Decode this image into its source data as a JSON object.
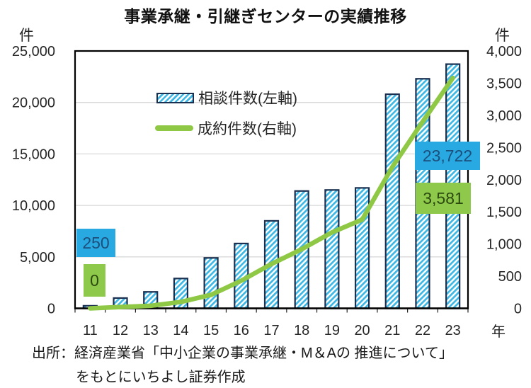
{
  "header": {
    "title": "事業承継・引継ぎセンターの実績推移"
  },
  "axes": {
    "left_unit": "件",
    "right_unit": "件",
    "x_unit": "年"
  },
  "legend": {
    "consultations": "相談件数(左軸)",
    "contracts": "成約件数(右軸)"
  },
  "callouts": {
    "consultations_first": "250",
    "contracts_first": "0",
    "consultations_last": "23,722",
    "contracts_last": "3,581"
  },
  "source": {
    "line1": "出所：経済産業省「中小企業の事業承継・M＆Aの 推進について」",
    "line2": "をもとにいちよし証券作成"
  },
  "colors": {
    "bar_hatch": "#3EB7E5",
    "bar_border": "#1B3050",
    "line": "#8FC845",
    "grid": "#D9D9D9",
    "axis": "#000000",
    "text": "#262626",
    "callout_blue_bg": "#29A9E1",
    "callout_blue_text": "#1C4F7C",
    "callout_green_bg": "#8FC94C",
    "callout_green_text": "#2B4A10"
  },
  "chart_data": {
    "type": "bar+line combo, dual axis",
    "title": "事業承継・引継ぎセンターの実績推移",
    "categories": [
      "11",
      "12",
      "13",
      "14",
      "15",
      "16",
      "17",
      "18",
      "19",
      "20",
      "21",
      "22",
      "23"
    ],
    "x_axis_unit": "年",
    "series": [
      {
        "name": "相談件数(左軸)",
        "type": "bar",
        "axis": "left",
        "values": [
          250,
          1000,
          1600,
          2900,
          4900,
          6300,
          8500,
          11400,
          11500,
          11700,
          20800,
          22300,
          23722
        ]
      },
      {
        "name": "成約件数(右軸)",
        "type": "line",
        "axis": "right",
        "values": [
          0,
          20,
          40,
          100,
          210,
          430,
          690,
          920,
          1180,
          1380,
          2200,
          2900,
          3581
        ]
      }
    ],
    "left_axis": {
      "unit": "件",
      "min": 0,
      "max": 25000,
      "step": 5000,
      "tick_labels": [
        "25,000",
        "20,000",
        "15,000",
        "10,000",
        "5,000",
        "0"
      ]
    },
    "right_axis": {
      "unit": "件",
      "min": 0,
      "max": 4000,
      "step": 500,
      "tick_labels": [
        "4,000",
        "3,500",
        "3,000",
        "2,500",
        "2,000",
        "1,500",
        "1,000",
        "500",
        "0"
      ]
    },
    "gridlines": "horizontal light gray at left-axis steps",
    "legend_position": "top-left inside plot",
    "annotations": [
      {
        "year": "11",
        "series": "相談件数",
        "text": "250",
        "style": "blue box"
      },
      {
        "year": "11",
        "series": "成約件数",
        "text": "0",
        "style": "green box"
      },
      {
        "year": "23",
        "series": "相談件数",
        "text": "23,722",
        "style": "blue box"
      },
      {
        "year": "23",
        "series": "成約件数",
        "text": "3,581",
        "style": "green box"
      }
    ]
  }
}
